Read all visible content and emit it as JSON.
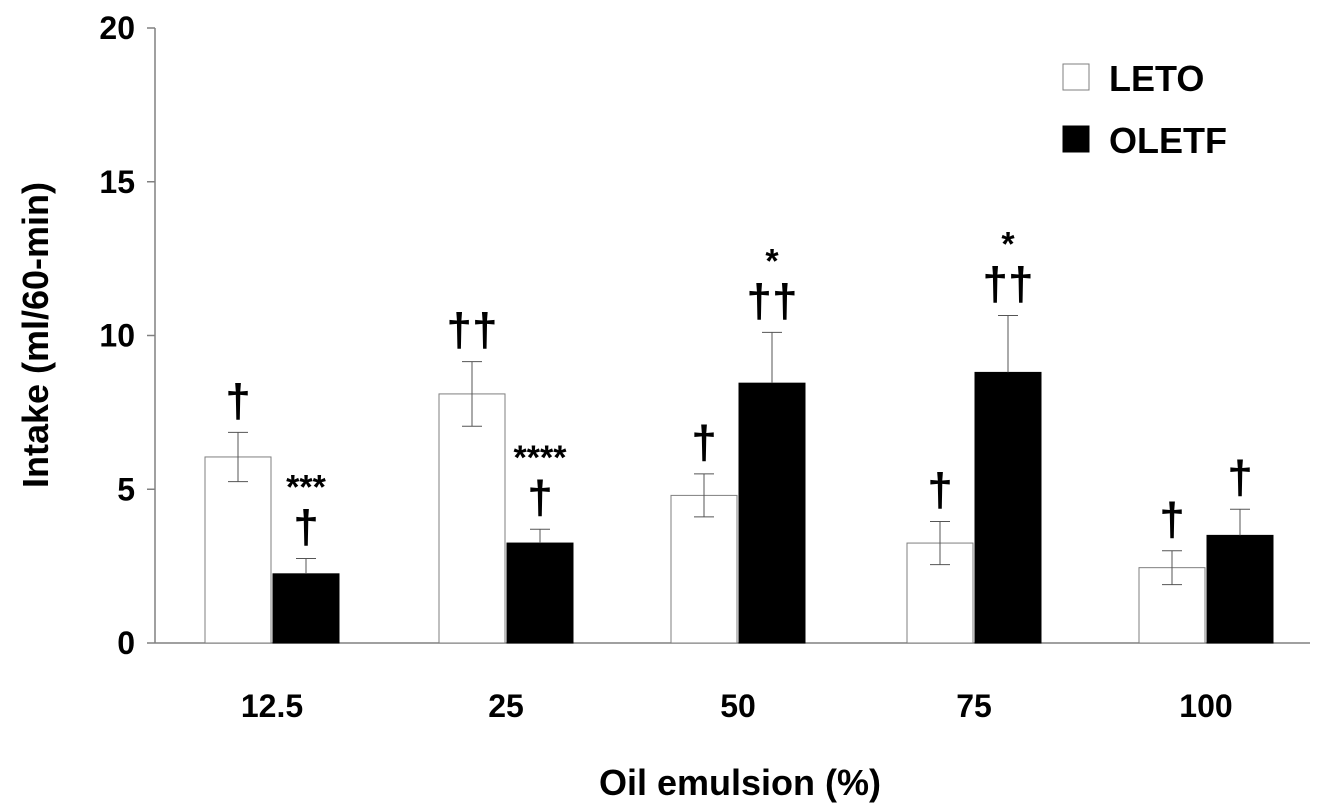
{
  "chart_data": {
    "type": "bar",
    "title": "",
    "xlabel": "Oil emulsion (%)",
    "ylabel": "Intake (ml/60-min)",
    "ylim": [
      0,
      20
    ],
    "yticks": [
      "0",
      "5",
      "10",
      "15",
      "20"
    ],
    "categories": [
      "12.5",
      "25",
      "50",
      "75",
      "100"
    ],
    "legend_position": "top-right",
    "grid": false,
    "series": [
      {
        "name": "LETO",
        "fill": "#ffffff",
        "values": [
          6.05,
          8.1,
          4.8,
          3.25,
          2.45
        ],
        "errors": [
          0.8,
          1.05,
          0.7,
          0.7,
          0.55
        ],
        "annotations": [
          [
            "†"
          ],
          [
            "††"
          ],
          [
            "†"
          ],
          [
            "†"
          ],
          [
            "†"
          ]
        ]
      },
      {
        "name": "OLETF",
        "fill": "#000000",
        "values": [
          2.25,
          3.25,
          8.45,
          8.8,
          3.5
        ],
        "errors": [
          0.5,
          0.45,
          1.65,
          1.85,
          0.85
        ],
        "annotations": [
          [
            "***",
            "†"
          ],
          [
            "****",
            "†"
          ],
          [
            "*",
            "††"
          ],
          [
            "*",
            "††"
          ],
          [
            "†"
          ]
        ]
      }
    ]
  }
}
